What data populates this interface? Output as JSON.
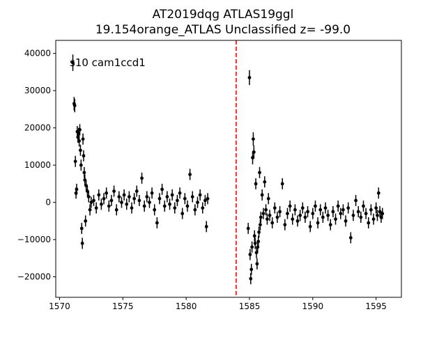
{
  "chart_data": {
    "type": "scatter",
    "title_line1": "AT2019dqg  ATLAS19ggl",
    "title_line2": "19.154orange_ATLAS Unclassified z= -99.0",
    "annotation": "s10 cam1ccd1",
    "xlabel": "",
    "ylabel": "",
    "xlim": [
      1569.7,
      1597.0
    ],
    "ylim": [
      -25500,
      43500
    ],
    "xticks": [
      1570,
      1575,
      1580,
      1585,
      1590,
      1595
    ],
    "yticks": [
      -20000,
      -10000,
      0,
      10000,
      20000,
      30000,
      40000
    ],
    "vline": {
      "x": 1583.95,
      "color": "#ff0000",
      "style": "dashed"
    },
    "marker_color": "#000000",
    "series": [
      {
        "points": [
          [
            1571.05,
            37500,
            2200
          ],
          [
            1571.15,
            26500,
            1800
          ],
          [
            1571.2,
            26000,
            1800
          ],
          [
            1571.25,
            11000,
            1500
          ],
          [
            1571.3,
            2500,
            1500
          ],
          [
            1571.35,
            3500,
            1500
          ],
          [
            1571.4,
            19000,
            1500
          ],
          [
            1571.45,
            17500,
            1500
          ],
          [
            1571.5,
            18500,
            1500
          ],
          [
            1571.55,
            16500,
            1500
          ],
          [
            1571.6,
            19500,
            1500
          ],
          [
            1571.65,
            14000,
            1500
          ],
          [
            1571.7,
            10000,
            1500
          ],
          [
            1571.75,
            -7000,
            1500
          ],
          [
            1571.8,
            -11000,
            1500
          ],
          [
            1571.85,
            17000,
            1500
          ],
          [
            1571.9,
            12500,
            1500
          ],
          [
            1571.95,
            8000,
            1500
          ],
          [
            1572.0,
            6000,
            1500
          ],
          [
            1572.05,
            -5000,
            1500
          ],
          [
            1572.1,
            4500,
            1500
          ],
          [
            1572.2,
            3000,
            1500
          ],
          [
            1572.3,
            1500,
            1500
          ],
          [
            1572.4,
            -2000,
            1500
          ],
          [
            1572.5,
            0,
            1500
          ],
          [
            1572.7,
            500,
            1500
          ],
          [
            1572.9,
            -1500,
            1500
          ],
          [
            1573.1,
            2000,
            1500
          ],
          [
            1573.3,
            -500,
            1500
          ],
          [
            1573.5,
            1000,
            1500
          ],
          [
            1573.7,
            2500,
            1500
          ],
          [
            1573.9,
            -1000,
            1500
          ],
          [
            1574.1,
            500,
            1500
          ],
          [
            1574.3,
            3000,
            1500
          ],
          [
            1574.5,
            -2000,
            1500
          ],
          [
            1574.7,
            1500,
            1500
          ],
          [
            1574.9,
            0,
            1500
          ],
          [
            1575.1,
            2000,
            1500
          ],
          [
            1575.3,
            -500,
            1500
          ],
          [
            1575.5,
            1500,
            1500
          ],
          [
            1575.7,
            -1500,
            1500
          ],
          [
            1575.9,
            1000,
            1500
          ],
          [
            1576.1,
            3000,
            1500
          ],
          [
            1576.3,
            500,
            1500
          ],
          [
            1576.5,
            6500,
            1500
          ],
          [
            1576.7,
            -1000,
            1500
          ],
          [
            1576.9,
            1500,
            1500
          ],
          [
            1577.1,
            0,
            1500
          ],
          [
            1577.3,
            2500,
            1500
          ],
          [
            1577.5,
            -2000,
            1500
          ],
          [
            1577.7,
            -5500,
            1500
          ],
          [
            1577.9,
            1000,
            1500
          ],
          [
            1578.1,
            3500,
            1500
          ],
          [
            1578.3,
            -1000,
            1500
          ],
          [
            1578.5,
            1500,
            1500
          ],
          [
            1578.7,
            -500,
            1500
          ],
          [
            1578.9,
            2000,
            1500
          ],
          [
            1579.1,
            -1500,
            1500
          ],
          [
            1579.3,
            500,
            1500
          ],
          [
            1579.5,
            2500,
            1500
          ],
          [
            1579.7,
            -3000,
            1500
          ],
          [
            1579.9,
            1000,
            1500
          ],
          [
            1580.1,
            -1000,
            1500
          ],
          [
            1580.3,
            7500,
            1500
          ],
          [
            1580.5,
            1500,
            1500
          ],
          [
            1580.7,
            -2000,
            1500
          ],
          [
            1580.9,
            0,
            1500
          ],
          [
            1581.1,
            2000,
            1500
          ],
          [
            1581.3,
            -1500,
            1500
          ],
          [
            1581.5,
            500,
            1500
          ],
          [
            1581.6,
            -6500,
            1500
          ],
          [
            1581.7,
            1000,
            1500
          ],
          [
            1585.0,
            33500,
            2000
          ],
          [
            1584.9,
            -7000,
            1500
          ],
          [
            1585.05,
            -14000,
            1500
          ],
          [
            1585.1,
            -20500,
            1500
          ],
          [
            1585.15,
            -18000,
            1500
          ],
          [
            1585.2,
            -12000,
            1500
          ],
          [
            1585.25,
            12000,
            1800
          ],
          [
            1585.3,
            17000,
            1800
          ],
          [
            1585.35,
            13500,
            1800
          ],
          [
            1585.4,
            -9000,
            1500
          ],
          [
            1585.45,
            -11000,
            1500
          ],
          [
            1585.5,
            5000,
            1500
          ],
          [
            1585.55,
            -13500,
            1500
          ],
          [
            1585.6,
            -16500,
            1500
          ],
          [
            1585.65,
            -12000,
            1500
          ],
          [
            1585.7,
            -10500,
            1500
          ],
          [
            1585.75,
            -8000,
            1500
          ],
          [
            1585.8,
            8000,
            1500
          ],
          [
            1585.85,
            -6000,
            1500
          ],
          [
            1585.9,
            -4000,
            1500
          ],
          [
            1586.0,
            2000,
            1500
          ],
          [
            1586.1,
            -3000,
            1500
          ],
          [
            1586.2,
            5500,
            1500
          ],
          [
            1586.3,
            -2000,
            1500
          ],
          [
            1586.4,
            -4500,
            1500
          ],
          [
            1586.5,
            1000,
            1500
          ],
          [
            1586.6,
            -3500,
            1500
          ],
          [
            1586.8,
            -5500,
            1500
          ],
          [
            1587.0,
            -1500,
            1500
          ],
          [
            1587.2,
            -4000,
            1500
          ],
          [
            1587.4,
            -2500,
            1500
          ],
          [
            1587.6,
            5000,
            1500
          ],
          [
            1587.8,
            -6000,
            1500
          ],
          [
            1588.0,
            -3000,
            1500
          ],
          [
            1588.2,
            -1000,
            1500
          ],
          [
            1588.4,
            -4500,
            1500
          ],
          [
            1588.6,
            -2000,
            1500
          ],
          [
            1588.8,
            -5000,
            1500
          ],
          [
            1589.0,
            -3500,
            1500
          ],
          [
            1589.2,
            -1500,
            1500
          ],
          [
            1589.4,
            -4000,
            1500
          ],
          [
            1589.6,
            -2500,
            1500
          ],
          [
            1589.8,
            -6500,
            1500
          ],
          [
            1590.0,
            -3000,
            1500
          ],
          [
            1590.2,
            -1000,
            1500
          ],
          [
            1590.4,
            -5500,
            1500
          ],
          [
            1590.6,
            -2000,
            1500
          ],
          [
            1590.8,
            -4000,
            1500
          ],
          [
            1591.0,
            -1500,
            1500
          ],
          [
            1591.2,
            -3500,
            1500
          ],
          [
            1591.4,
            -6000,
            1500
          ],
          [
            1591.6,
            -2500,
            1500
          ],
          [
            1591.8,
            -4500,
            1500
          ],
          [
            1592.0,
            -1000,
            1500
          ],
          [
            1592.2,
            -3000,
            1500
          ],
          [
            1592.4,
            -2000,
            1500
          ],
          [
            1592.6,
            -5000,
            1500
          ],
          [
            1592.8,
            -1500,
            1500
          ],
          [
            1593.0,
            -9500,
            1500
          ],
          [
            1593.2,
            -3500,
            1500
          ],
          [
            1593.4,
            500,
            1500
          ],
          [
            1593.6,
            -2500,
            1500
          ],
          [
            1593.8,
            -4000,
            1500
          ],
          [
            1594.0,
            -1000,
            1500
          ],
          [
            1594.2,
            -3000,
            1500
          ],
          [
            1594.4,
            -5500,
            1500
          ],
          [
            1594.6,
            -2000,
            1500
          ],
          [
            1594.8,
            -4500,
            1500
          ],
          [
            1595.0,
            -1500,
            1500
          ],
          [
            1595.1,
            -3500,
            1500
          ],
          [
            1595.2,
            2500,
            1500
          ],
          [
            1595.3,
            -2500,
            1500
          ],
          [
            1595.4,
            -4000,
            1500
          ],
          [
            1595.5,
            -3000,
            1500
          ]
        ]
      }
    ]
  }
}
